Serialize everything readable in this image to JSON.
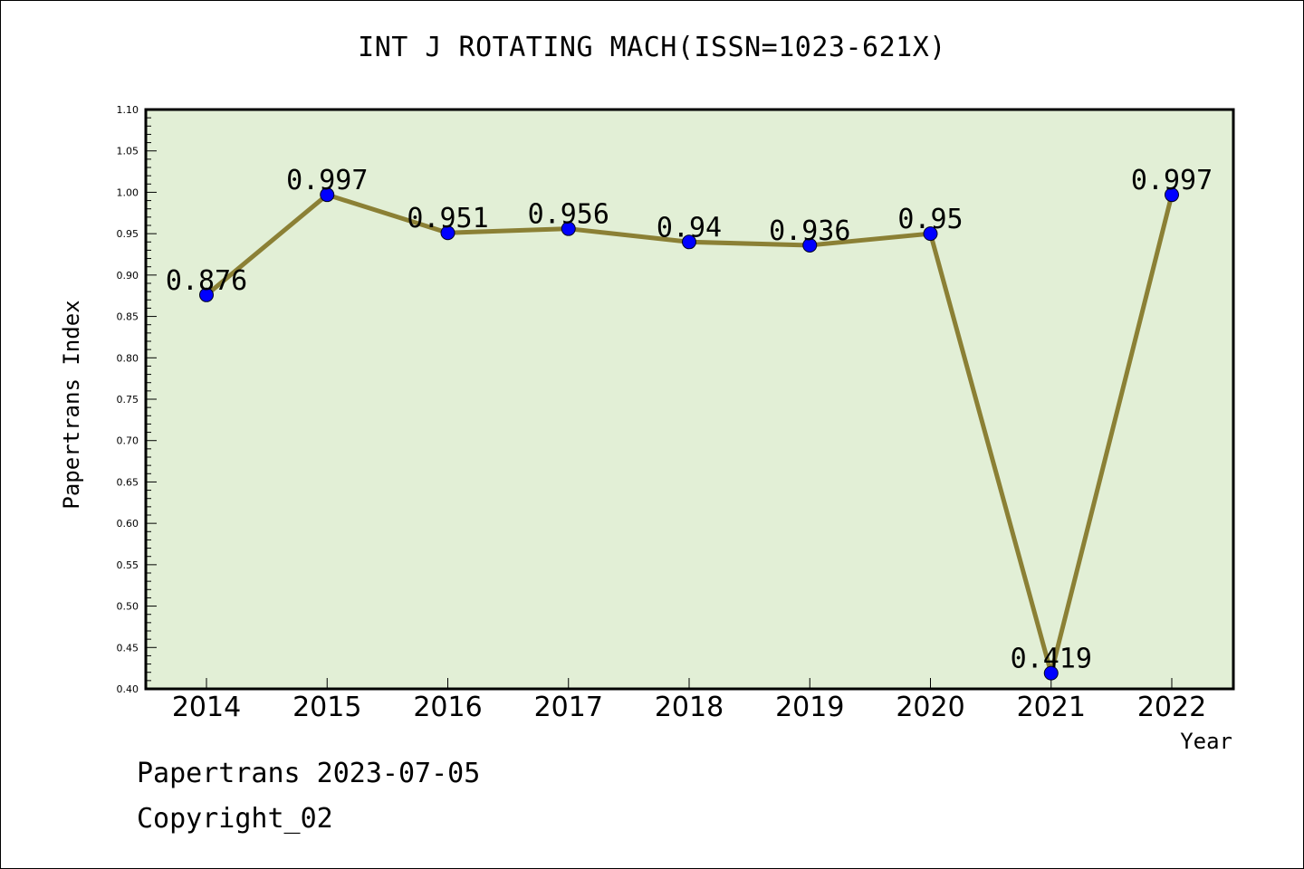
{
  "chart_data": {
    "type": "line",
    "title": "INT J ROTATING MACH(ISSN=1023-621X)",
    "xlabel": "Year",
    "ylabel": "Papertrans Index",
    "categories": [
      "2014",
      "2015",
      "2016",
      "2017",
      "2018",
      "2019",
      "2020",
      "2021",
      "2022"
    ],
    "series": [
      {
        "values": [
          0.876,
          0.997,
          0.951,
          0.956,
          0.94,
          0.936,
          0.95,
          0.419,
          0.997
        ],
        "labels": [
          "0.876",
          "0.997",
          "0.951",
          "0.956",
          "0.94",
          "0.936",
          "0.95",
          "0.419",
          "0.997"
        ]
      }
    ],
    "ylim": [
      0.4,
      1.1
    ],
    "yticks": [
      "0.40",
      "0.45",
      "0.50",
      "0.55",
      "0.60",
      "0.65",
      "0.70",
      "0.75",
      "0.80",
      "0.85",
      "0.90",
      "0.95",
      "1.00",
      "1.05",
      "1.10"
    ],
    "grid": false,
    "colors": {
      "plot_background": "#e2efd6",
      "line": "#8b8035",
      "marker": "#0000ff"
    }
  },
  "footer": {
    "line1": "Papertrans 2023-07-05",
    "line2": "Copyright_02"
  }
}
